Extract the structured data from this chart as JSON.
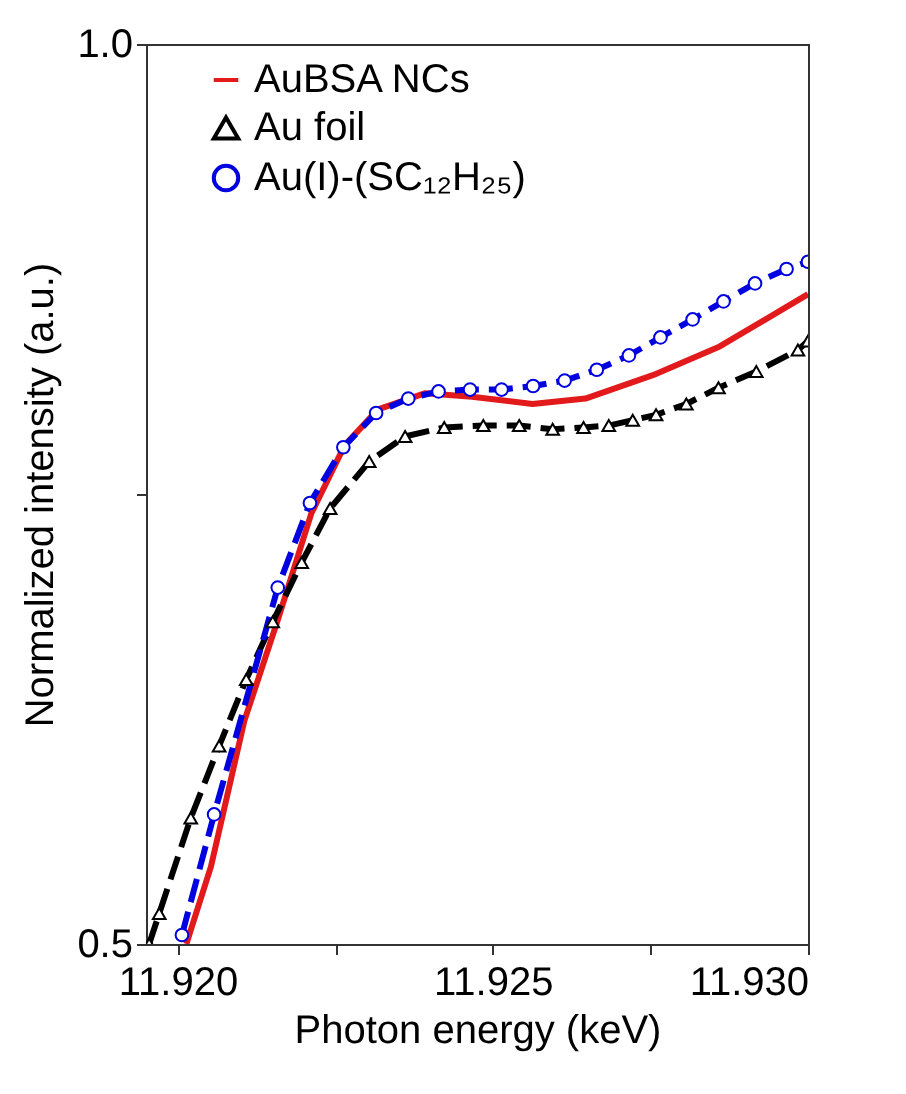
{
  "chart_data": {
    "type": "line",
    "xlabel": "Photon energy (keV)",
    "ylabel": "Normalized intensity (a.u.)",
    "xlim": [
      11.9195,
      11.93
    ],
    "ylim": [
      0.5,
      1.0
    ],
    "xticks": [
      {
        "value": 11.92,
        "label": "11.920"
      },
      {
        "value": 11.9225,
        "label": null
      },
      {
        "value": 11.925,
        "label": "11.925"
      },
      {
        "value": 11.9275,
        "label": null
      },
      {
        "value": 11.93,
        "label": "11.930"
      }
    ],
    "yticks": [
      0.5,
      {
        "value": 0.75,
        "label": null
      },
      {
        "value": 1.0,
        "label": "1.0"
      }
    ],
    "grid": false,
    "legend": "top left",
    "series": [
      {
        "name": "AuBSA NCs",
        "color": "#e31a1c",
        "marker": "none",
        "line_style": "solid",
        "x": [
          11.92014,
          11.92053,
          11.92106,
          11.92159,
          11.92212,
          11.92265,
          11.92318,
          11.92393,
          11.92467,
          11.92563,
          11.92647,
          11.92754,
          11.9286,
          11.93
        ],
        "values": [
          0.5,
          0.543,
          0.624,
          0.68,
          0.739,
          0.777,
          0.797,
          0.806,
          0.804,
          0.8,
          0.803,
          0.816,
          0.832,
          0.861
        ]
      },
      {
        "name": "Au foil",
        "color": "#000000",
        "marker": "triangle",
        "line_style": "dashed",
        "x": [
          11.91955,
          11.91971,
          11.92021,
          11.92066,
          11.92109,
          11.92151,
          11.92197,
          11.92242,
          11.92304,
          11.92361,
          11.92423,
          11.92485,
          11.92542,
          11.92595,
          11.92644,
          11.92684,
          11.92722,
          11.92759,
          11.92807,
          11.92858,
          11.92918,
          11.92984,
          11.93
        ],
        "values": [
          0.5,
          0.517,
          0.57,
          0.61,
          0.647,
          0.679,
          0.712,
          0.742,
          0.768,
          0.782,
          0.787,
          0.788,
          0.788,
          0.786,
          0.787,
          0.788,
          0.791,
          0.794,
          0.8,
          0.809,
          0.818,
          0.83,
          0.835
        ]
      },
      {
        "name": "Au(I)-(SC₁₂H₂₅)",
        "color": "#0000e0",
        "marker": "circle",
        "line_style": "dashed",
        "x": [
          11.92007,
          11.92058,
          11.92159,
          11.9221,
          11.92263,
          11.92315,
          11.92366,
          11.92414,
          11.92464,
          11.92514,
          11.92564,
          11.92614,
          11.92665,
          11.92716,
          11.92766,
          11.92817,
          11.92866,
          11.92916,
          11.92966,
          11.93
        ],
        "values": [
          0.505,
          0.572,
          0.698,
          0.745,
          0.776,
          0.795,
          0.803,
          0.807,
          0.808,
          0.808,
          0.81,
          0.813,
          0.819,
          0.827,
          0.837,
          0.847,
          0.857,
          0.867,
          0.875,
          0.879
        ]
      }
    ]
  }
}
